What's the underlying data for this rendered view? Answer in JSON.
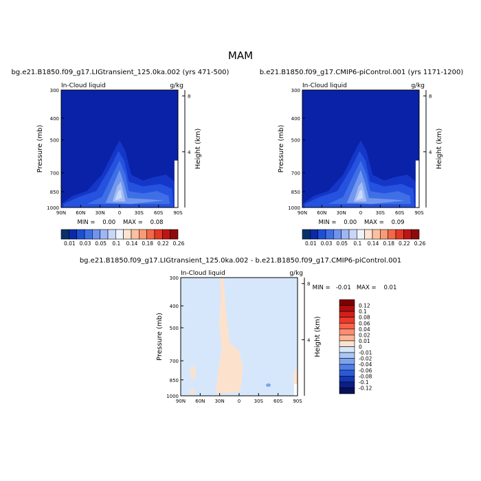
{
  "page": {
    "season": "MAM",
    "case_a_label": "bg.e21.B1850.f09_g17.LIGtransient_125.0ka.002 (yrs 471-500)",
    "case_b_label": "b.e21.B1850.f09_g17.CMIP6-piControl.001 (yrs 1171-1200)",
    "diff_label": "bg.e21.B1850.f09_g17.LIGtransient_125.0ka.002 - b.e21.B1850.f09_g17.CMIP6-piControl.001",
    "variable": "In-Cloud liquid",
    "units": "g/kg",
    "ylabel": "Pressure (mb)",
    "ylabel_right": "Height (km)",
    "panel_a_stats": "MIN =    0.00    MAX =    0.08",
    "panel_b_stats": "MIN =    0.00    MAX =    0.09",
    "diff_stats": "MIN =   -0.01   MAX =    0.01"
  },
  "chart_data": [
    {
      "type": "contour",
      "title": "bg.e21.B1850.f09_g17.LIGtransient_125.0ka.002 (yrs 471-500)",
      "xlabel": "",
      "ylabel": "Pressure (mb)",
      "x_ticks": [
        "90N",
        "60N",
        "30N",
        "0",
        "30S",
        "60S",
        "90S"
      ],
      "y_ticks": [
        300,
        400,
        500,
        700,
        850,
        1000
      ],
      "right_ticks": [
        8,
        4
      ],
      "min": 0.0,
      "max": 0.08
    },
    {
      "type": "contour",
      "title": "b.e21.B1850.f09_g17.CMIP6-piControl.001 (yrs 1171-1200)",
      "xlabel": "",
      "ylabel": "Pressure (mb)",
      "x_ticks": [
        "90N",
        "60N",
        "30N",
        "0",
        "30S",
        "60S",
        "90S"
      ],
      "y_ticks": [
        300,
        400,
        500,
        700,
        850,
        1000
      ],
      "right_ticks": [
        8,
        4
      ],
      "min": 0.0,
      "max": 0.09
    },
    {
      "type": "contour",
      "title": "bg.e21.B1850.f09_g17.LIGtransient_125.0ka.002 - b.e21.B1850.f09_g17.CMIP6-piControl.001",
      "xlabel": "",
      "ylabel": "Pressure (mb)",
      "x_ticks": [
        "90N",
        "60N",
        "30N",
        "0",
        "30S",
        "60S",
        "90S"
      ],
      "y_ticks": [
        300,
        400,
        500,
        700,
        850,
        1000
      ],
      "right_ticks": [
        8,
        4
      ],
      "min": -0.01,
      "max": 0.01
    }
  ],
  "colorbar_h": {
    "levels": [
      "0.01",
      "0.03",
      "0.05",
      "0.1",
      "0.14",
      "0.18",
      "0.22",
      "0.26"
    ],
    "colors": [
      "#08306b",
      "#0a2aa8",
      "#1c4fd6",
      "#3f6fe6",
      "#6f93ef",
      "#9fb6f4",
      "#c8d6f8",
      "#eef3fd",
      "#fde3d0",
      "#fcc0a0",
      "#f99a76",
      "#f26848",
      "#e23a24",
      "#c01414",
      "#8e0a0a"
    ]
  },
  "colorbar_v": {
    "levels": [
      "0.12",
      "0.1",
      "0.08",
      "0.06",
      "0.04",
      "0.02",
      "0.01",
      "0",
      "-0.01",
      "-0.02",
      "-0.04",
      "-0.06",
      "-0.08",
      "-0.1",
      "-0.12"
    ],
    "colors": [
      "#7f0000",
      "#b10d0d",
      "#d21f1a",
      "#ed3a2a",
      "#f9614a",
      "#fb8d70",
      "#fdb597",
      "#fce2cd",
      "#d6e7fb",
      "#a9c6f5",
      "#7da3ef",
      "#4f7fe6",
      "#2a5ad8",
      "#1437b3",
      "#0b1f86",
      "#08105c"
    ]
  },
  "colors": {
    "background_contour": "#0a22a8",
    "diff_background": "#d6e7fb",
    "diff_positive": "#fce2cd"
  }
}
